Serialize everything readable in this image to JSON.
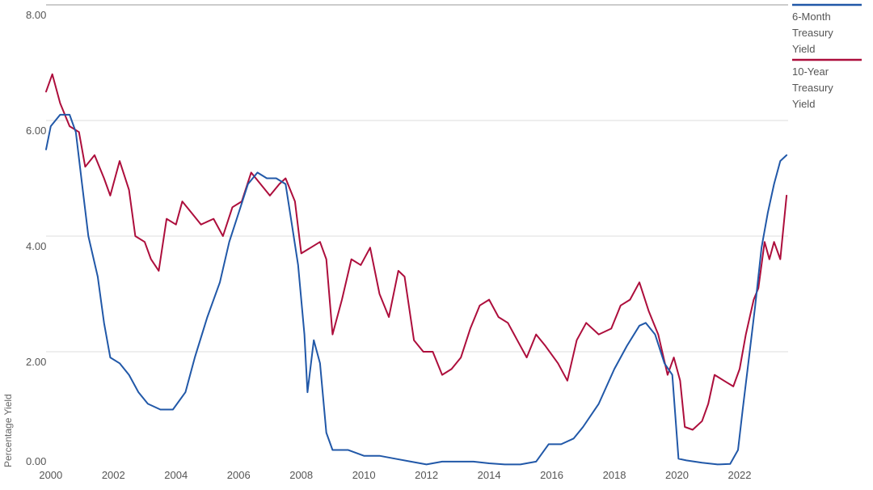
{
  "chart_data": {
    "type": "line",
    "title": "",
    "xlabel": "",
    "ylabel": "Percentage Yield",
    "xlim": [
      1999.85,
      2023.55
    ],
    "ylim": [
      0,
      8
    ],
    "x_ticks": [
      "2000",
      "2002",
      "2004",
      "2006",
      "2008",
      "2010",
      "2012",
      "2014",
      "2016",
      "2018",
      "2020",
      "2022"
    ],
    "y_ticks": [
      "0.00",
      "2.00",
      "4.00",
      "6.00",
      "8.00"
    ],
    "grid": "horizontal",
    "legend_position": "right",
    "series": [
      {
        "name": "6-Month Treasury Yield",
        "color": "#2158a8",
        "x": [
          1999.85,
          2000.0,
          2000.3,
          2000.6,
          2000.8,
          2001.0,
          2001.2,
          2001.5,
          2001.7,
          2001.9,
          2002.2,
          2002.5,
          2002.8,
          2003.1,
          2003.5,
          2003.9,
          2004.3,
          2004.6,
          2005.0,
          2005.4,
          2005.7,
          2006.0,
          2006.3,
          2006.6,
          2006.9,
          2007.2,
          2007.5,
          2007.7,
          2007.9,
          2008.1,
          2008.2,
          2008.4,
          2008.6,
          2008.8,
          2009.0,
          2009.5,
          2010.0,
          2010.5,
          2011.0,
          2011.5,
          2012.0,
          2012.5,
          2013.0,
          2013.5,
          2014.0,
          2014.5,
          2015.0,
          2015.5,
          2015.9,
          2016.3,
          2016.7,
          2017.0,
          2017.5,
          2018.0,
          2018.4,
          2018.8,
          2019.0,
          2019.3,
          2019.6,
          2019.85,
          2020.05,
          2020.3,
          2020.8,
          2021.3,
          2021.7,
          2021.95,
          2022.1,
          2022.3,
          2022.5,
          2022.7,
          2022.9,
          2023.1,
          2023.3,
          2023.5
        ],
        "values": [
          5.5,
          5.9,
          6.1,
          6.1,
          5.8,
          4.9,
          4.0,
          3.3,
          2.5,
          1.9,
          1.8,
          1.6,
          1.3,
          1.1,
          1.0,
          1.0,
          1.3,
          1.9,
          2.6,
          3.2,
          3.9,
          4.4,
          4.9,
          5.1,
          5.0,
          5.0,
          4.9,
          4.2,
          3.5,
          2.3,
          1.3,
          2.2,
          1.8,
          0.6,
          0.3,
          0.3,
          0.2,
          0.2,
          0.15,
          0.1,
          0.05,
          0.1,
          0.1,
          0.1,
          0.07,
          0.05,
          0.05,
          0.1,
          0.4,
          0.4,
          0.5,
          0.7,
          1.1,
          1.7,
          2.1,
          2.45,
          2.5,
          2.3,
          1.8,
          1.6,
          0.15,
          0.12,
          0.08,
          0.05,
          0.06,
          0.3,
          1.0,
          1.9,
          2.8,
          3.8,
          4.4,
          4.9,
          5.3,
          5.4
        ]
      },
      {
        "name": "10-Year Treasury Yield",
        "color": "#ad0e3c",
        "x": [
          1999.85,
          2000.05,
          2000.3,
          2000.6,
          2000.9,
          2001.1,
          2001.4,
          2001.7,
          2001.9,
          2002.2,
          2002.5,
          2002.7,
          2003.0,
          2003.2,
          2003.45,
          2003.7,
          2004.0,
          2004.2,
          2004.5,
          2004.8,
          2005.2,
          2005.5,
          2005.8,
          2006.1,
          2006.4,
          2006.7,
          2007.0,
          2007.3,
          2007.5,
          2007.8,
          2008.0,
          2008.3,
          2008.6,
          2008.8,
          2009.0,
          2009.3,
          2009.6,
          2009.9,
          2010.2,
          2010.5,
          2010.8,
          2011.1,
          2011.3,
          2011.6,
          2011.9,
          2012.2,
          2012.5,
          2012.8,
          2013.1,
          2013.4,
          2013.7,
          2014.0,
          2014.3,
          2014.6,
          2014.9,
          2015.2,
          2015.5,
          2015.8,
          2016.2,
          2016.5,
          2016.8,
          2017.1,
          2017.5,
          2017.9,
          2018.2,
          2018.5,
          2018.8,
          2019.1,
          2019.4,
          2019.7,
          2019.9,
          2020.1,
          2020.25,
          2020.5,
          2020.8,
          2021.0,
          2021.2,
          2021.5,
          2021.8,
          2022.0,
          2022.2,
          2022.45,
          2022.6,
          2022.8,
          2022.95,
          2023.1,
          2023.3,
          2023.5
        ],
        "values": [
          6.5,
          6.8,
          6.3,
          5.9,
          5.8,
          5.2,
          5.4,
          5.0,
          4.7,
          5.3,
          4.8,
          4.0,
          3.9,
          3.6,
          3.4,
          4.3,
          4.2,
          4.6,
          4.4,
          4.2,
          4.3,
          4.0,
          4.5,
          4.6,
          5.1,
          4.9,
          4.7,
          4.9,
          5.0,
          4.6,
          3.7,
          3.8,
          3.9,
          3.6,
          2.3,
          2.9,
          3.6,
          3.5,
          3.8,
          3.0,
          2.6,
          3.4,
          3.3,
          2.2,
          2.0,
          2.0,
          1.6,
          1.7,
          1.9,
          2.4,
          2.8,
          2.9,
          2.6,
          2.5,
          2.2,
          1.9,
          2.3,
          2.1,
          1.8,
          1.5,
          2.2,
          2.5,
          2.3,
          2.4,
          2.8,
          2.9,
          3.2,
          2.7,
          2.3,
          1.6,
          1.9,
          1.5,
          0.7,
          0.65,
          0.8,
          1.1,
          1.6,
          1.5,
          1.4,
          1.7,
          2.3,
          2.9,
          3.1,
          3.9,
          3.6,
          3.9,
          3.6,
          4.7
        ]
      }
    ]
  }
}
